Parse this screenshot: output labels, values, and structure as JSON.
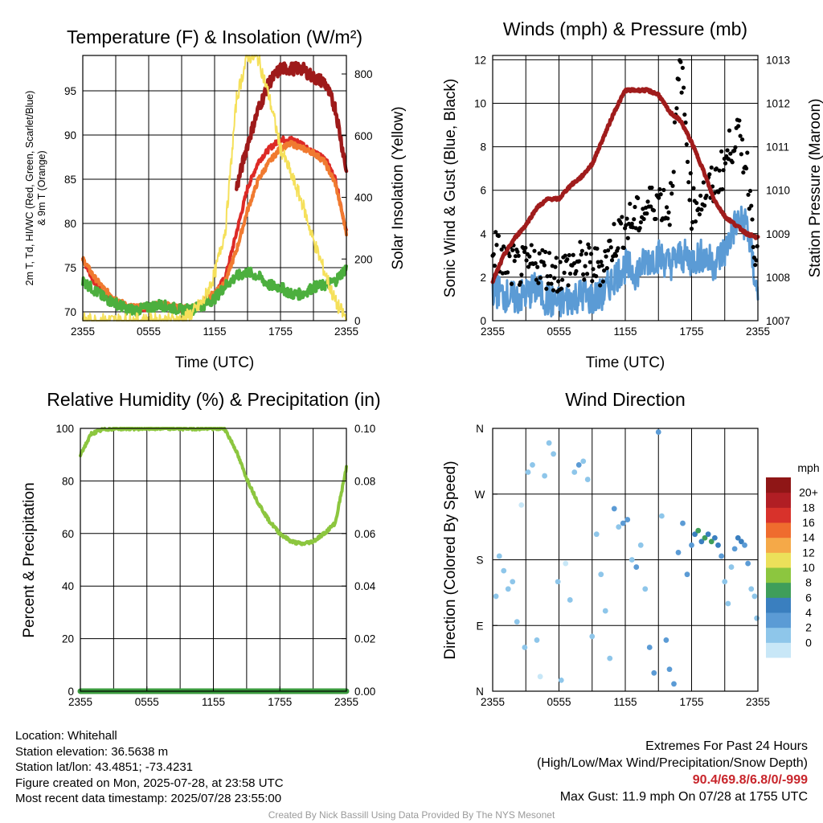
{
  "panels": {
    "temperature": {
      "title": "Temperature (F) & Insolation (W/m²)",
      "ylabel_line1": "2m T, Td, HI/WC (Red, Green, Scarlet/Blue)",
      "ylabel_line2": "& 9m T (Orange)",
      "ylabel_right": "Solar Insolation (Yellow)",
      "xlabel": "Time (UTC)"
    },
    "winds": {
      "title": "Winds (mph) & Pressure (mb)",
      "ylabel": "Sonic Wind & Gust (Blue, Black)",
      "ylabel_right": "Station Pressure (Maroon)",
      "xlabel": "Time (UTC)"
    },
    "humidity": {
      "title": "Relative Humidity (%) & Precipitation (in)",
      "ylabel": "Percent & Precipitation"
    },
    "direction": {
      "title": "Wind Direction",
      "ylabel": "Direction (Colored By Speed)",
      "legend_title": "mph"
    }
  },
  "colors": {
    "temp_2m": "#dd2a26",
    "dewpoint": "#4caf3e",
    "heat_index": "#9e1a1a",
    "temp_9m": "#f07a30",
    "insolation": "#f5e05a",
    "wind": "#5b9bd5",
    "gust": "#000000",
    "pressure": "#a01c1c",
    "humidity": "#8cc63f",
    "precip": "#3a9a3e"
  },
  "chart_data": [
    {
      "type": "line",
      "title": "Temperature (F) & Insolation (W/m²)",
      "xlabel": "Time (UTC)",
      "ylabel": "2m T, Td, HI/WC (Red, Green, Scarlet/Blue) & 9m T (Orange)",
      "ylabel_right": "Solar Insolation (Yellow)",
      "x_ticks": [
        "2355",
        "0555",
        "1155",
        "1755",
        "2355"
      ],
      "y_ticks": [
        70,
        75,
        80,
        85,
        90,
        95
      ],
      "y_right_ticks": [
        0,
        200,
        400,
        600,
        800
      ],
      "ylim": [
        69,
        99
      ],
      "ylim_right": [
        0,
        860
      ],
      "x_hours": [
        0,
        1,
        2,
        3,
        4,
        5,
        6,
        7,
        8,
        9,
        10,
        11,
        12,
        13,
        14,
        15,
        16,
        17,
        18,
        19,
        20,
        21,
        22,
        23,
        24
      ],
      "series": [
        {
          "name": "2m T",
          "axis": "left",
          "values": [
            76,
            73.5,
            72,
            71,
            70.3,
            70.2,
            70.5,
            70.8,
            70.5,
            70.1,
            70.2,
            71,
            72,
            74,
            79,
            84,
            87,
            88.5,
            89.5,
            89.5,
            89,
            88,
            87.5,
            85,
            79
          ]
        },
        {
          "name": "9m T",
          "axis": "left",
          "values": [
            76,
            74,
            72.5,
            71.5,
            70.7,
            70.5,
            70.7,
            70.9,
            70.7,
            70.5,
            70.5,
            71.2,
            72.2,
            73.5,
            77,
            81.5,
            85,
            87,
            88.5,
            89,
            88.5,
            88,
            87,
            84.5,
            79
          ]
        },
        {
          "name": "Td",
          "axis": "left",
          "values": [
            73.5,
            72.5,
            71.5,
            71,
            70.3,
            70.2,
            70.5,
            70.8,
            70.5,
            70.2,
            70.3,
            70.8,
            71.5,
            73,
            74,
            74.5,
            74,
            73,
            72.8,
            72,
            72,
            72.8,
            73,
            73.5,
            75
          ]
        },
        {
          "name": "HI/WC",
          "axis": "left",
          "values": [
            null,
            null,
            null,
            null,
            null,
            null,
            null,
            null,
            null,
            null,
            null,
            null,
            null,
            null,
            84,
            89,
            93,
            96,
            97.5,
            97.5,
            97.5,
            96.5,
            96,
            93,
            86
          ]
        },
        {
          "name": "Insolation",
          "axis": "right",
          "values": [
            0,
            0,
            0,
            0,
            0,
            0,
            0,
            0,
            0,
            2,
            25,
            65,
            150,
            300,
            720,
            860,
            850,
            720,
            560,
            470,
            380,
            260,
            160,
            60,
            5
          ]
        }
      ]
    },
    {
      "type": "line",
      "title": "Winds (mph) & Pressure (mb)",
      "xlabel": "Time (UTC)",
      "ylabel": "Sonic Wind & Gust (Blue, Black)",
      "ylabel_right": "Station Pressure (Maroon)",
      "x_ticks": [
        "2355",
        "0555",
        "1155",
        "1755",
        "2355"
      ],
      "y_ticks": [
        0,
        2,
        4,
        6,
        8,
        10,
        12
      ],
      "y_right_ticks": [
        1007,
        1008,
        1009,
        1010,
        1011,
        1012,
        1013
      ],
      "ylim": [
        0,
        12.2
      ],
      "ylim_right": [
        1007,
        1013.1
      ],
      "x_hours": [
        0,
        1,
        2,
        3,
        4,
        5,
        6,
        7,
        8,
        9,
        10,
        11,
        12,
        13,
        14,
        15,
        16,
        17,
        18,
        19,
        20,
        21,
        22,
        23,
        24
      ],
      "series": [
        {
          "name": "Sonic Wind",
          "axis": "left",
          "values": [
            1.5,
            1.2,
            1.0,
            1.2,
            1.5,
            0.9,
            0.8,
            1.0,
            1.2,
            1.0,
            1.2,
            2.0,
            2.5,
            2.2,
            2.8,
            3.0,
            2.6,
            3.0,
            2.8,
            3.0,
            2.6,
            3.2,
            4.5,
            4.5,
            1.0
          ]
        },
        {
          "name": "Gust",
          "axis": "left",
          "values": [
            3.3,
            2.5,
            2.3,
            2.2,
            2.5,
            2.2,
            2.0,
            2.3,
            2.5,
            2.3,
            2.4,
            3.5,
            4.2,
            4.5,
            5.0,
            5.5,
            4.8,
            11.9,
            5.0,
            5.5,
            6.0,
            7.0,
            8.5,
            7.0,
            2.0
          ]
        },
        {
          "name": "Pressure",
          "axis": "right",
          "values": [
            1007.9,
            1008.5,
            1008.9,
            1009.2,
            1009.6,
            1009.8,
            1009.8,
            1010.1,
            1010.3,
            1010.6,
            1011.2,
            1011.8,
            1012.3,
            1012.3,
            1012.3,
            1012.2,
            1011.8,
            1011.6,
            1011.1,
            1010.5,
            1009.8,
            1009.4,
            1009.2,
            1009.0,
            1008.9
          ]
        }
      ]
    },
    {
      "type": "line",
      "title": "Relative Humidity (%) & Precipitation (in)",
      "ylabel": "Percent & Precipitation",
      "x_ticks": [
        "2355",
        "0555",
        "1155",
        "1755",
        "2355"
      ],
      "y_ticks": [
        0,
        20,
        40,
        60,
        80,
        100
      ],
      "y_right_ticks": [
        "0.00",
        "0.02",
        "0.04",
        "0.06",
        "0.08",
        "0.10"
      ],
      "ylim": [
        0,
        100
      ],
      "ylim_right": [
        0,
        0.1
      ],
      "x_hours": [
        0,
        1,
        2,
        3,
        4,
        5,
        6,
        7,
        8,
        9,
        10,
        11,
        12,
        13,
        14,
        15,
        16,
        17,
        18,
        19,
        20,
        21,
        22,
        23,
        24
      ],
      "series": [
        {
          "name": "Relative Humidity",
          "axis": "left",
          "values": [
            90,
            98,
            99.5,
            100,
            100,
            100,
            100,
            100,
            100,
            100,
            100,
            100,
            100,
            100,
            92,
            81,
            72,
            65,
            60,
            57,
            56,
            57,
            60,
            64,
            85
          ]
        },
        {
          "name": "Precipitation",
          "axis": "right",
          "values": [
            0,
            0,
            0,
            0,
            0,
            0,
            0,
            0,
            0,
            0,
            0,
            0,
            0,
            0,
            0,
            0,
            0,
            0,
            0,
            0,
            0,
            0,
            0,
            0,
            0
          ]
        }
      ]
    },
    {
      "type": "scatter",
      "title": "Wind Direction",
      "ylabel": "Direction (Colored By Speed)",
      "x_ticks": [
        "2355",
        "0555",
        "1155",
        "1755",
        "2355"
      ],
      "y_ticks": [
        "N",
        "E",
        "S",
        "W",
        "N"
      ],
      "ylim": [
        0,
        360
      ],
      "legend_title": "mph",
      "color_scale": {
        "labels": [
          "0",
          "2",
          "4",
          "6",
          "8",
          "10",
          "12",
          "14",
          "16",
          "18",
          "20+"
        ],
        "colors": [
          "#c8e7f7",
          "#8ec6ea",
          "#5b9bd5",
          "#3a7fbf",
          "#3f9e5a",
          "#8cc63f",
          "#ece05a",
          "#f5a948",
          "#ef6c2e",
          "#d8322b",
          "#b11e24",
          "#8f1616"
        ]
      },
      "points": [
        {
          "hour": 0.3,
          "dir": 130,
          "speed": 1.5
        },
        {
          "hour": 0.6,
          "dir": 185,
          "speed": 2.5
        },
        {
          "hour": 1.0,
          "dir": 165,
          "speed": 1.2
        },
        {
          "hour": 1.4,
          "dir": 140,
          "speed": 1.0
        },
        {
          "hour": 1.8,
          "dir": 150,
          "speed": 2.0
        },
        {
          "hour": 2.2,
          "dir": 95,
          "speed": 1.0
        },
        {
          "hour": 2.6,
          "dir": 255,
          "speed": 0.8
        },
        {
          "hour": 2.9,
          "dir": 60,
          "speed": 1.2
        },
        {
          "hour": 3.2,
          "dir": 300,
          "speed": 1.0
        },
        {
          "hour": 3.6,
          "dir": 310,
          "speed": 1.6
        },
        {
          "hour": 4.0,
          "dir": 70,
          "speed": 2.2
        },
        {
          "hour": 4.3,
          "dir": 20,
          "speed": 0.5
        },
        {
          "hour": 4.7,
          "dir": 295,
          "speed": 1.2
        },
        {
          "hour": 5.1,
          "dir": 340,
          "speed": 1.0
        },
        {
          "hour": 5.5,
          "dir": 325,
          "speed": 1.5
        },
        {
          "hour": 5.9,
          "dir": 150,
          "speed": 1.0
        },
        {
          "hour": 6.2,
          "dir": 15,
          "speed": 1.8
        },
        {
          "hour": 6.6,
          "dir": 175,
          "speed": 0.8
        },
        {
          "hour": 7.0,
          "dir": 125,
          "speed": 1.2
        },
        {
          "hour": 7.4,
          "dir": 300,
          "speed": 2.2
        },
        {
          "hour": 7.8,
          "dir": 310,
          "speed": 3.0
        },
        {
          "hour": 8.2,
          "dir": 315,
          "speed": 2.5
        },
        {
          "hour": 8.6,
          "dir": 290,
          "speed": 1.5
        },
        {
          "hour": 9.0,
          "dir": 75,
          "speed": 1.0
        },
        {
          "hour": 9.4,
          "dir": 215,
          "speed": 1.2
        },
        {
          "hour": 9.8,
          "dir": 160,
          "speed": 1.5
        },
        {
          "hour": 10.2,
          "dir": 110,
          "speed": 1.0
        },
        {
          "hour": 10.6,
          "dir": 45,
          "speed": 2.5
        },
        {
          "hour": 11.0,
          "dir": 250,
          "speed": 3.0
        },
        {
          "hour": 11.4,
          "dir": 225,
          "speed": 2.5
        },
        {
          "hour": 11.8,
          "dir": 230,
          "speed": 3.5
        },
        {
          "hour": 12.2,
          "dir": 235,
          "speed": 4.0
        },
        {
          "hour": 12.6,
          "dir": 180,
          "speed": 2.8
        },
        {
          "hour": 13.0,
          "dir": 170,
          "speed": 3.5
        },
        {
          "hour": 13.4,
          "dir": 200,
          "speed": 2.5
        },
        {
          "hour": 13.8,
          "dir": 140,
          "speed": 2.0
        },
        {
          "hour": 14.2,
          "dir": 60,
          "speed": 3.0
        },
        {
          "hour": 14.6,
          "dir": 25,
          "speed": 4.0
        },
        {
          "hour": 15.0,
          "dir": 355,
          "speed": 4.5
        },
        {
          "hour": 15.3,
          "dir": 240,
          "speed": 2.5
        },
        {
          "hour": 15.7,
          "dir": 70,
          "speed": 3.0
        },
        {
          "hour": 16.0,
          "dir": 30,
          "speed": 4.0
        },
        {
          "hour": 16.4,
          "dir": 10,
          "speed": 3.5
        },
        {
          "hour": 16.8,
          "dir": 190,
          "speed": 3.0
        },
        {
          "hour": 17.2,
          "dir": 230,
          "speed": 4.0
        },
        {
          "hour": 17.6,
          "dir": 160,
          "speed": 3.2
        },
        {
          "hour": 18.0,
          "dir": 200,
          "speed": 4.0
        },
        {
          "hour": 18.3,
          "dir": 215,
          "speed": 6.0
        },
        {
          "hour": 18.6,
          "dir": 220,
          "speed": 7.0
        },
        {
          "hour": 18.9,
          "dir": 205,
          "speed": 6.5
        },
        {
          "hour": 19.2,
          "dir": 210,
          "speed": 7.2
        },
        {
          "hour": 19.5,
          "dir": 215,
          "speed": 6.8
        },
        {
          "hour": 19.8,
          "dir": 205,
          "speed": 7.0
        },
        {
          "hour": 20.1,
          "dir": 210,
          "speed": 6.5
        },
        {
          "hour": 20.4,
          "dir": 200,
          "speed": 5.5
        },
        {
          "hour": 20.7,
          "dir": 185,
          "speed": 3.5
        },
        {
          "hour": 21.0,
          "dir": 150,
          "speed": 2.5
        },
        {
          "hour": 21.3,
          "dir": 120,
          "speed": 2.0
        },
        {
          "hour": 21.6,
          "dir": 170,
          "speed": 2.0
        },
        {
          "hour": 21.9,
          "dir": 195,
          "speed": 3.0
        },
        {
          "hour": 22.2,
          "dir": 210,
          "speed": 6.0
        },
        {
          "hour": 22.5,
          "dir": 205,
          "speed": 5.0
        },
        {
          "hour": 22.8,
          "dir": 200,
          "speed": 4.5
        },
        {
          "hour": 23.1,
          "dir": 175,
          "speed": 3.0
        },
        {
          "hour": 23.4,
          "dir": 140,
          "speed": 2.0
        },
        {
          "hour": 23.7,
          "dir": 130,
          "speed": 1.5
        },
        {
          "hour": 23.9,
          "dir": 100,
          "speed": 1.2
        }
      ]
    }
  ],
  "footer": {
    "location": "Location: Whitehall",
    "elevation": "Station elevation: 36.5638 m",
    "latlon": "Station lat/lon: 43.4851; -73.4231",
    "created": "Figure created on Mon, 2025-07-28, at 23:58 UTC",
    "recent": "Most recent data timestamp: 2025/07/28 23:55:00",
    "extremes_title": "Extremes For Past 24 Hours",
    "extremes_desc": "(High/Low/Max Wind/Precipitation/Snow Depth)",
    "extremes_values": "90.4/69.8/6.8/0/-999",
    "max_gust": "Max Gust: 11.9 mph On 07/28 at 1755 UTC",
    "credit": "Created By Nick Bassill Using Data Provided By The NYS Mesonet"
  }
}
